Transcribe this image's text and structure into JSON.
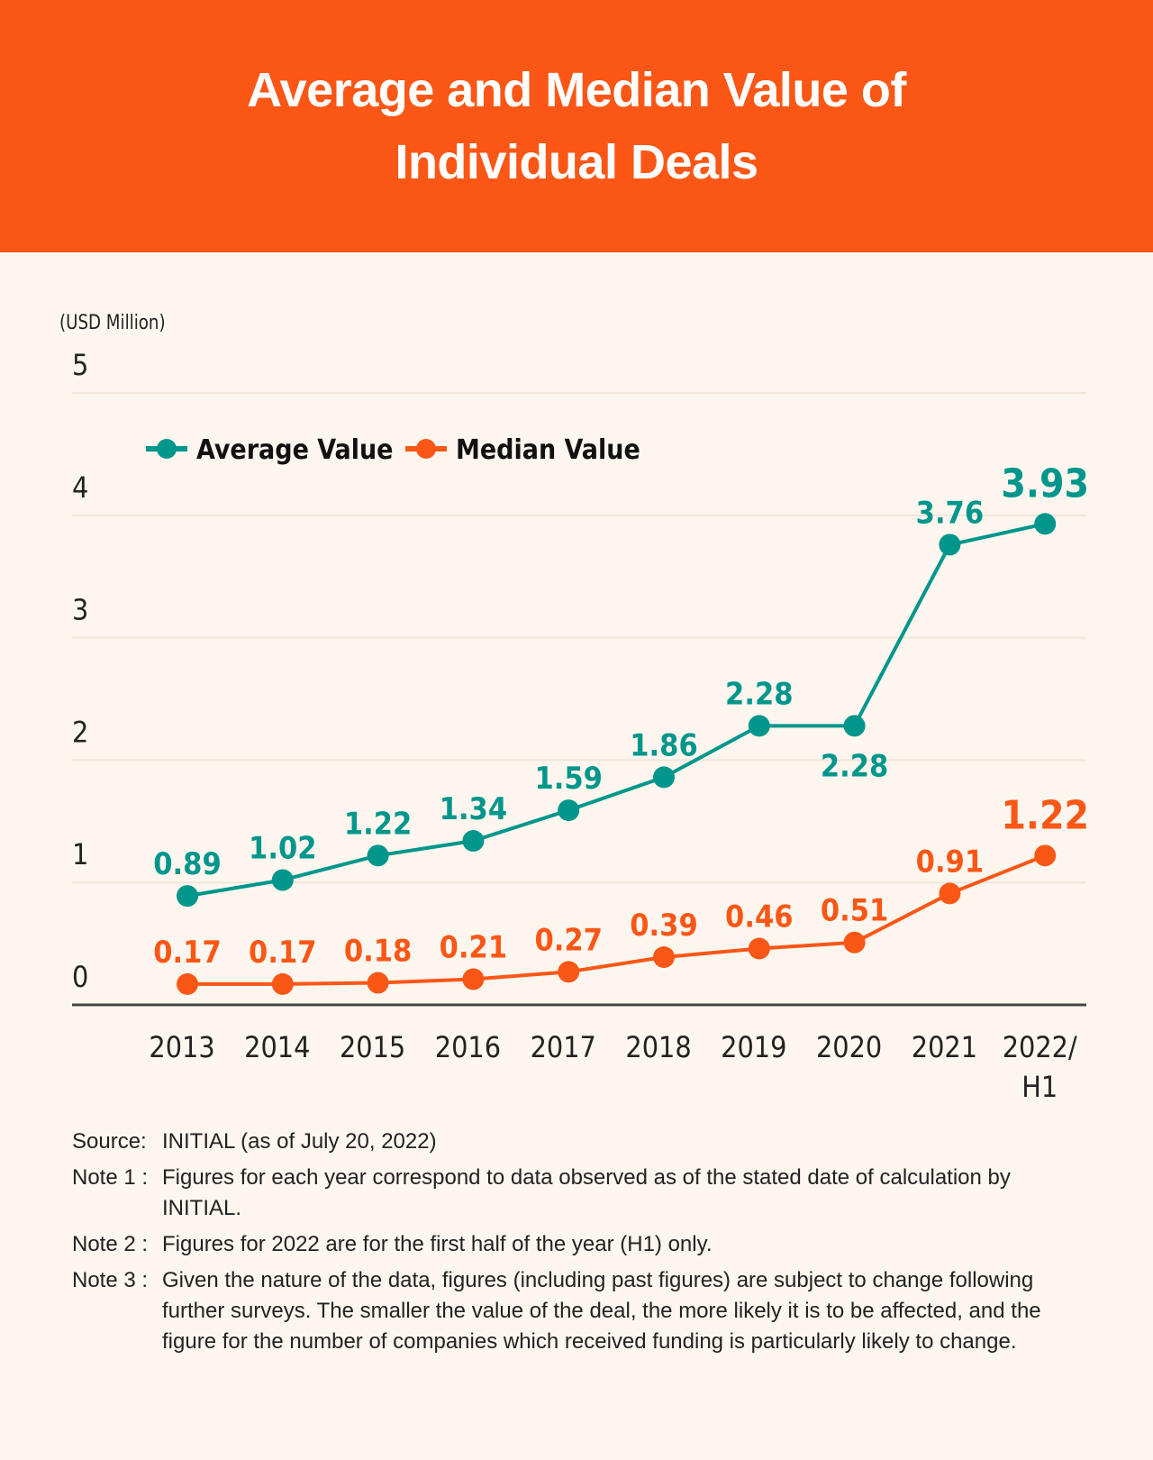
{
  "header": {
    "title": "Average and Median Value of Individual Deals"
  },
  "colors": {
    "header_bg": "#fa5716",
    "average": "#00968b",
    "median": "#fa5716",
    "background": "#fdf6ef",
    "gridline": "#f1e6da",
    "axis": "#444444"
  },
  "chart_data": {
    "type": "line",
    "title": "Average and Median Value of Individual Deals",
    "ylabel": "(USD Million)",
    "xlabel": "",
    "ylim": [
      0,
      5
    ],
    "yticks": [
      0,
      1,
      2,
      3,
      4,
      5
    ],
    "grid": true,
    "legend_position": "top-left",
    "categories": [
      "2013",
      "2014",
      "2015",
      "2016",
      "2017",
      "2018",
      "2019",
      "2020",
      "2021",
      "2022/H1"
    ],
    "category_lines": [
      [
        "2013"
      ],
      [
        "2014"
      ],
      [
        "2015"
      ],
      [
        "2016"
      ],
      [
        "2017"
      ],
      [
        "2018"
      ],
      [
        "2019"
      ],
      [
        "2020"
      ],
      [
        "2021"
      ],
      [
        "2022/",
        "H1"
      ]
    ],
    "series": [
      {
        "name": "Average Value",
        "color": "#00968b",
        "values": [
          0.89,
          1.02,
          1.22,
          1.34,
          1.59,
          1.86,
          2.28,
          2.28,
          3.76,
          3.93
        ],
        "labels": [
          "0.89",
          "1.02",
          "1.22",
          "1.34",
          "1.59",
          "1.86",
          "2.28",
          "2.28",
          "3.76",
          "3.93"
        ],
        "label_position": [
          "above",
          "above",
          "above",
          "above",
          "above",
          "above",
          "above",
          "below",
          "above",
          "above"
        ]
      },
      {
        "name": "Median Value",
        "color": "#fa5716",
        "values": [
          0.17,
          0.17,
          0.18,
          0.21,
          0.27,
          0.39,
          0.46,
          0.51,
          0.91,
          1.22
        ],
        "labels": [
          "0.17",
          "0.17",
          "0.18",
          "0.21",
          "0.27",
          "0.39",
          "0.46",
          "0.51",
          "0.91",
          "1.22"
        ],
        "label_position": [
          "above",
          "above",
          "above",
          "above",
          "above",
          "above",
          "above",
          "above",
          "above",
          "above"
        ]
      }
    ],
    "highlight_last": true
  },
  "notes": [
    {
      "label": "Source:",
      "text": "INITIAL (as of July 20, 2022)"
    },
    {
      "label": "Note 1 :",
      "text": "Figures for each year correspond to data observed as of the stated date of calculation by INITIAL."
    },
    {
      "label": "Note 2 :",
      "text": "Figures for 2022 are for the first half of the year (H1) only."
    },
    {
      "label": "Note 3 :",
      "text": "Given the nature of the data, figures (including past figures) are subject to change following further surveys. The smaller the value of the deal, the more likely it is to be affected, and the figure for the number of companies which received funding is particularly likely to change."
    }
  ]
}
